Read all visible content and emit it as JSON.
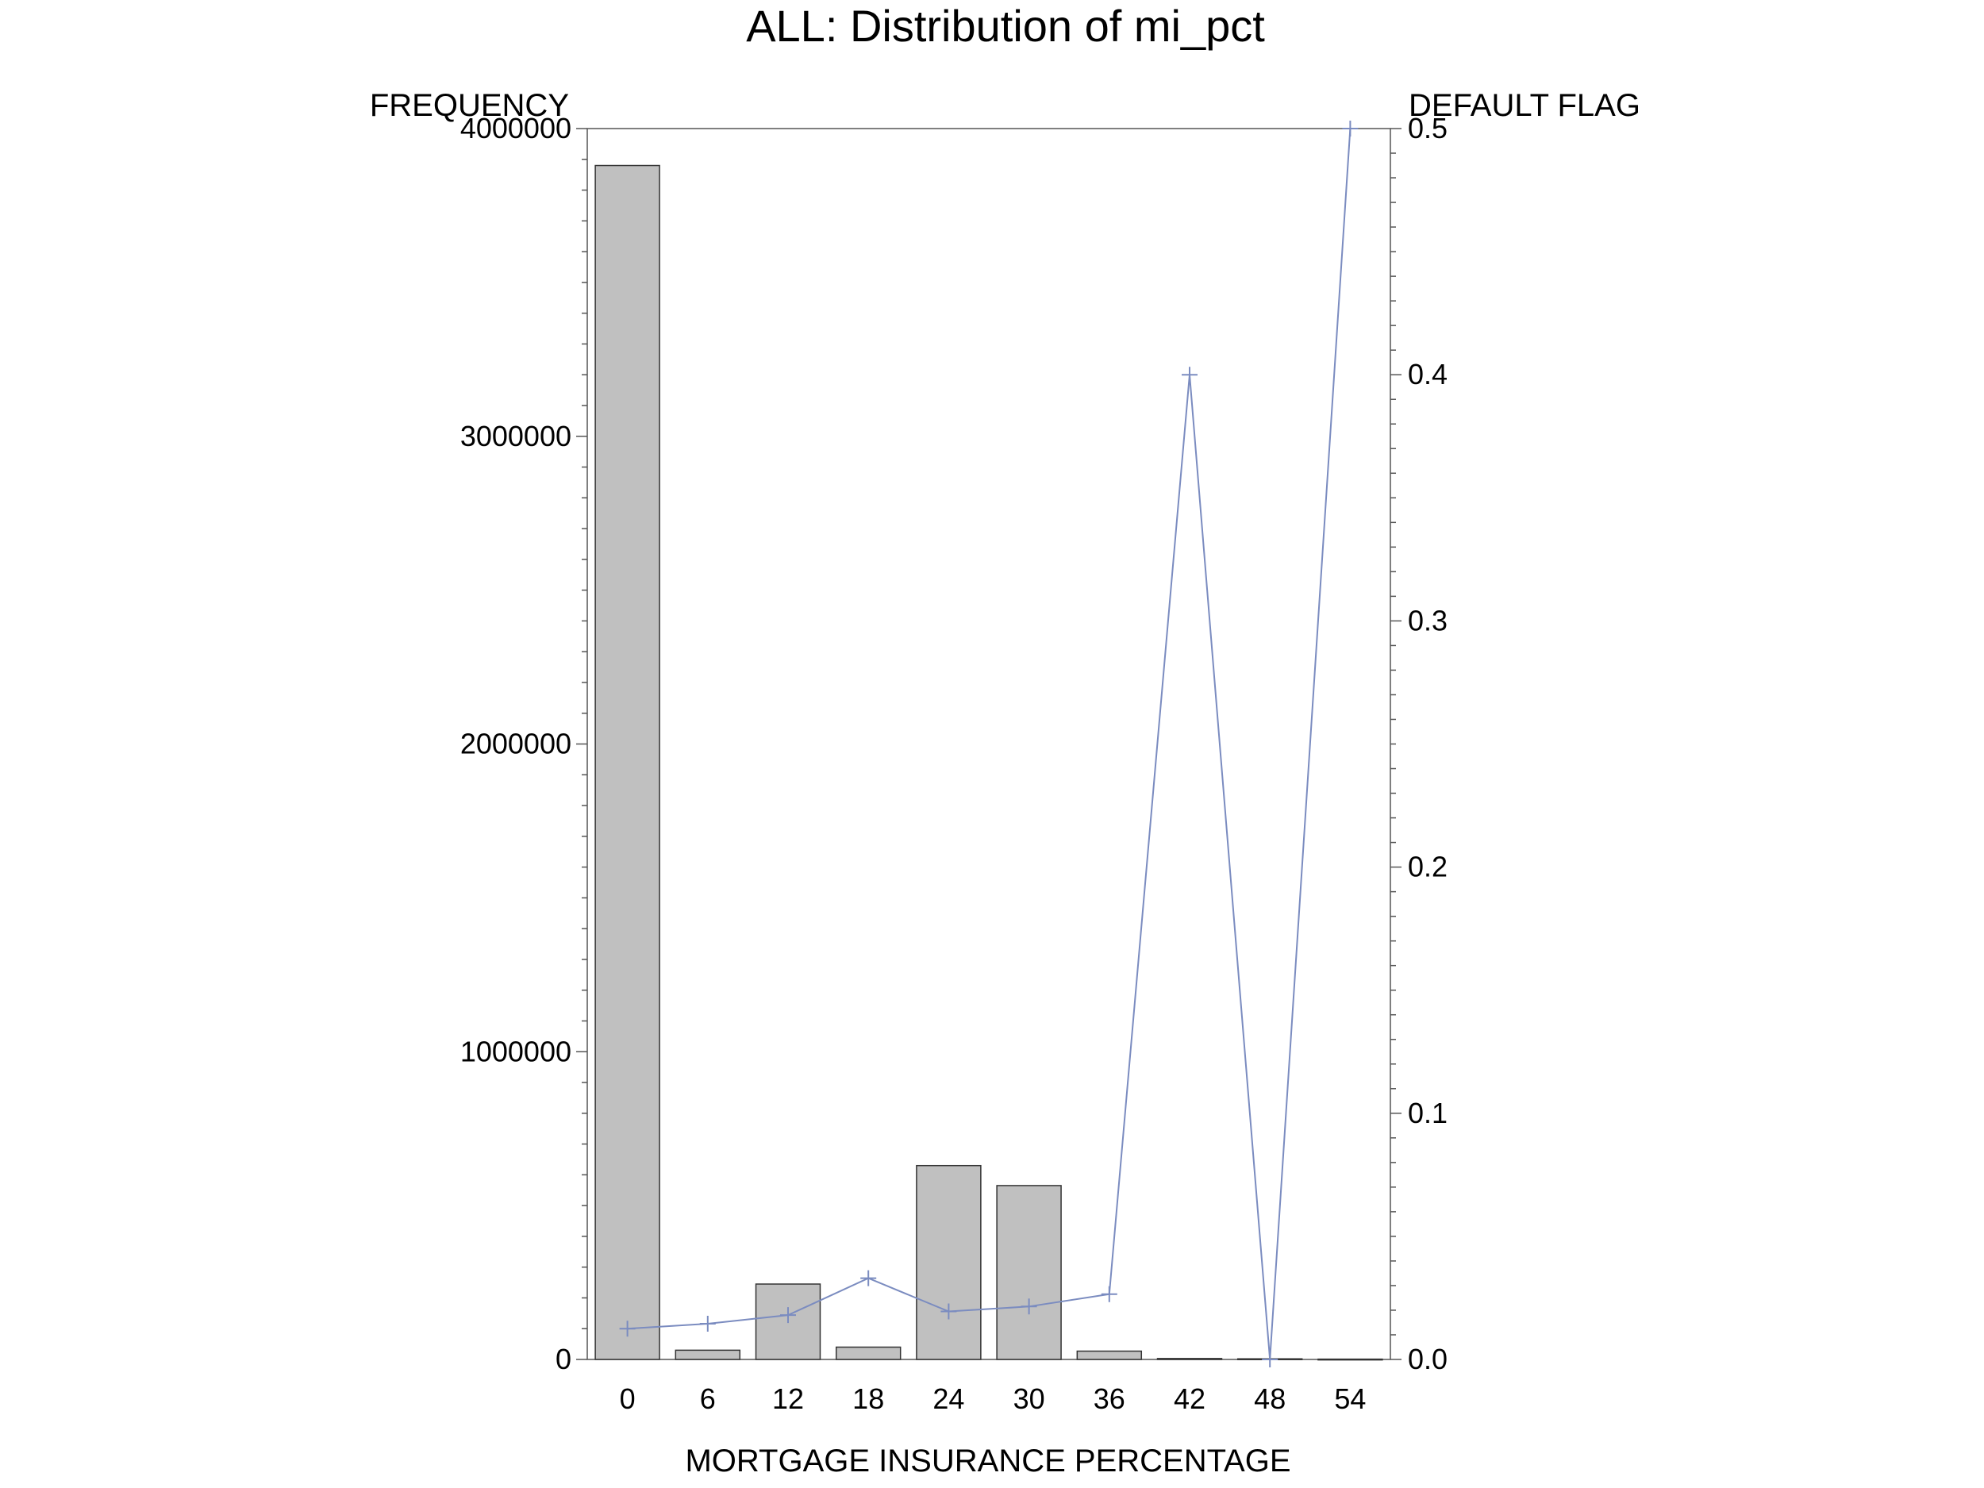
{
  "chart_data": {
    "type": "bar",
    "title": "ALL: Distribution of mi_pct",
    "xlabel": "MORTGAGE INSURANCE PERCENTAGE",
    "ylabel": "FREQUENCY",
    "y2label": "DEFAULT FLAG",
    "categories": [
      "0",
      "6",
      "12",
      "18",
      "24",
      "30",
      "36",
      "42",
      "48",
      "54"
    ],
    "series": [
      {
        "name": "FREQUENCY",
        "type": "bar",
        "axis": "left",
        "values": [
          3880000,
          30000,
          245000,
          40000,
          630000,
          565000,
          27000,
          3000,
          2000,
          1000
        ]
      },
      {
        "name": "DEFAULT FLAG",
        "type": "line",
        "axis": "right",
        "values": [
          0.0125,
          0.0145,
          0.018,
          0.033,
          0.0195,
          0.0215,
          0.0265,
          0.4,
          0.0,
          0.5
        ]
      }
    ],
    "ylim": [
      0,
      4000000
    ],
    "y2lim": [
      0,
      0.5
    ],
    "yticks": [
      "0",
      "1000000",
      "2000000",
      "3000000",
      "4000000"
    ],
    "y2ticks": [
      "0.0",
      "0.1",
      "0.2",
      "0.3",
      "0.4",
      "0.5"
    ],
    "grid": false,
    "colors": {
      "bar_fill": "#c0c0c0",
      "bar_stroke": "#333333",
      "line": "#7b8cc0",
      "axis": "#555555",
      "text": "#000000"
    }
  }
}
